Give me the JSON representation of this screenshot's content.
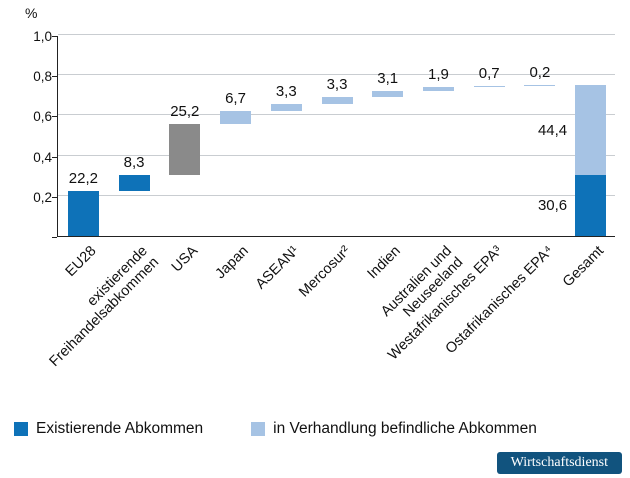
{
  "branding": {
    "badge_text": "Wirtschaftsdienst",
    "badge_color": "#11537E"
  },
  "legend": {
    "items": [
      {
        "type": "existing",
        "label": "Existierende Abkommen"
      },
      {
        "type": "negotiation",
        "label": "in Verhandlung befindliche Abkommen"
      }
    ]
  },
  "chart_data": {
    "type": "bar",
    "subtype": "waterfall",
    "unit_label": "%",
    "ylim": [
      0,
      1.0
    ],
    "grid": true,
    "legend_position": "bottom",
    "yticks": [
      {
        "value": 0.2,
        "label": "0,2"
      },
      {
        "value": 0.4,
        "label": "0,4"
      },
      {
        "value": 0.6,
        "label": "0,6"
      },
      {
        "value": 0.8,
        "label": "0,8"
      },
      {
        "value": 1.0,
        "label": "1,0"
      }
    ],
    "colors": {
      "existing": "#0E72B8",
      "negotiation": "#A6C3E4",
      "usa": "#8A8A8A",
      "grid": "#C9CDD1",
      "axis": "#222222"
    },
    "categories": [
      "EU28",
      "existierende Freihandelsabkommen",
      "USA",
      "Japan",
      "ASEAN¹",
      "Mercosur²",
      "Indien",
      "Australien und Neuseeland",
      "Westafrikanisches EPA³",
      "Ostafrikanisches EPA⁴",
      "Gesamt"
    ],
    "bars": [
      {
        "category_lines": [
          "EU28"
        ],
        "value_label": "22,2",
        "segments": [
          {
            "from": 0,
            "to": 0.222,
            "type": "existing"
          }
        ]
      },
      {
        "category_lines": [
          "existierende",
          "Freihandelsabkommen"
        ],
        "value_label": "8,3",
        "segments": [
          {
            "from": 0.222,
            "to": 0.305,
            "type": "existing"
          }
        ]
      },
      {
        "category_lines": [
          "USA"
        ],
        "value_label": "25,2",
        "segments": [
          {
            "from": 0.305,
            "to": 0.557,
            "type": "usa"
          }
        ]
      },
      {
        "category_lines": [
          "Japan"
        ],
        "value_label": "6,7",
        "segments": [
          {
            "from": 0.557,
            "to": 0.624,
            "type": "negotiation"
          }
        ]
      },
      {
        "category_lines": [
          "ASEAN¹"
        ],
        "value_label": "3,3",
        "segments": [
          {
            "from": 0.624,
            "to": 0.657,
            "type": "negotiation"
          }
        ]
      },
      {
        "category_lines": [
          "Mercosur²"
        ],
        "value_label": "3,3",
        "segments": [
          {
            "from": 0.657,
            "to": 0.69,
            "type": "negotiation"
          }
        ]
      },
      {
        "category_lines": [
          "Indien"
        ],
        "value_label": "3,1",
        "segments": [
          {
            "from": 0.69,
            "to": 0.721,
            "type": "negotiation"
          }
        ]
      },
      {
        "category_lines": [
          "Australien und",
          "Neuseeland"
        ],
        "value_label": "1,9",
        "segments": [
          {
            "from": 0.721,
            "to": 0.74,
            "type": "negotiation"
          }
        ]
      },
      {
        "category_lines": [
          "Westafrikanisches EPA³"
        ],
        "value_label": "0,7",
        "segments": [
          {
            "from": 0.74,
            "to": 0.747,
            "type": "negotiation"
          }
        ]
      },
      {
        "category_lines": [
          "Ostafrikanisches EPA⁴"
        ],
        "value_label": "0,2",
        "segments": [
          {
            "from": 0.747,
            "to": 0.749,
            "type": "negotiation"
          }
        ]
      },
      {
        "category_lines": [
          "Gesamt"
        ],
        "segments": [
          {
            "from": 0,
            "to": 0.306,
            "type": "existing",
            "label": "30,6"
          },
          {
            "from": 0.306,
            "to": 0.75,
            "type": "negotiation",
            "label": "44,4"
          }
        ]
      }
    ]
  }
}
